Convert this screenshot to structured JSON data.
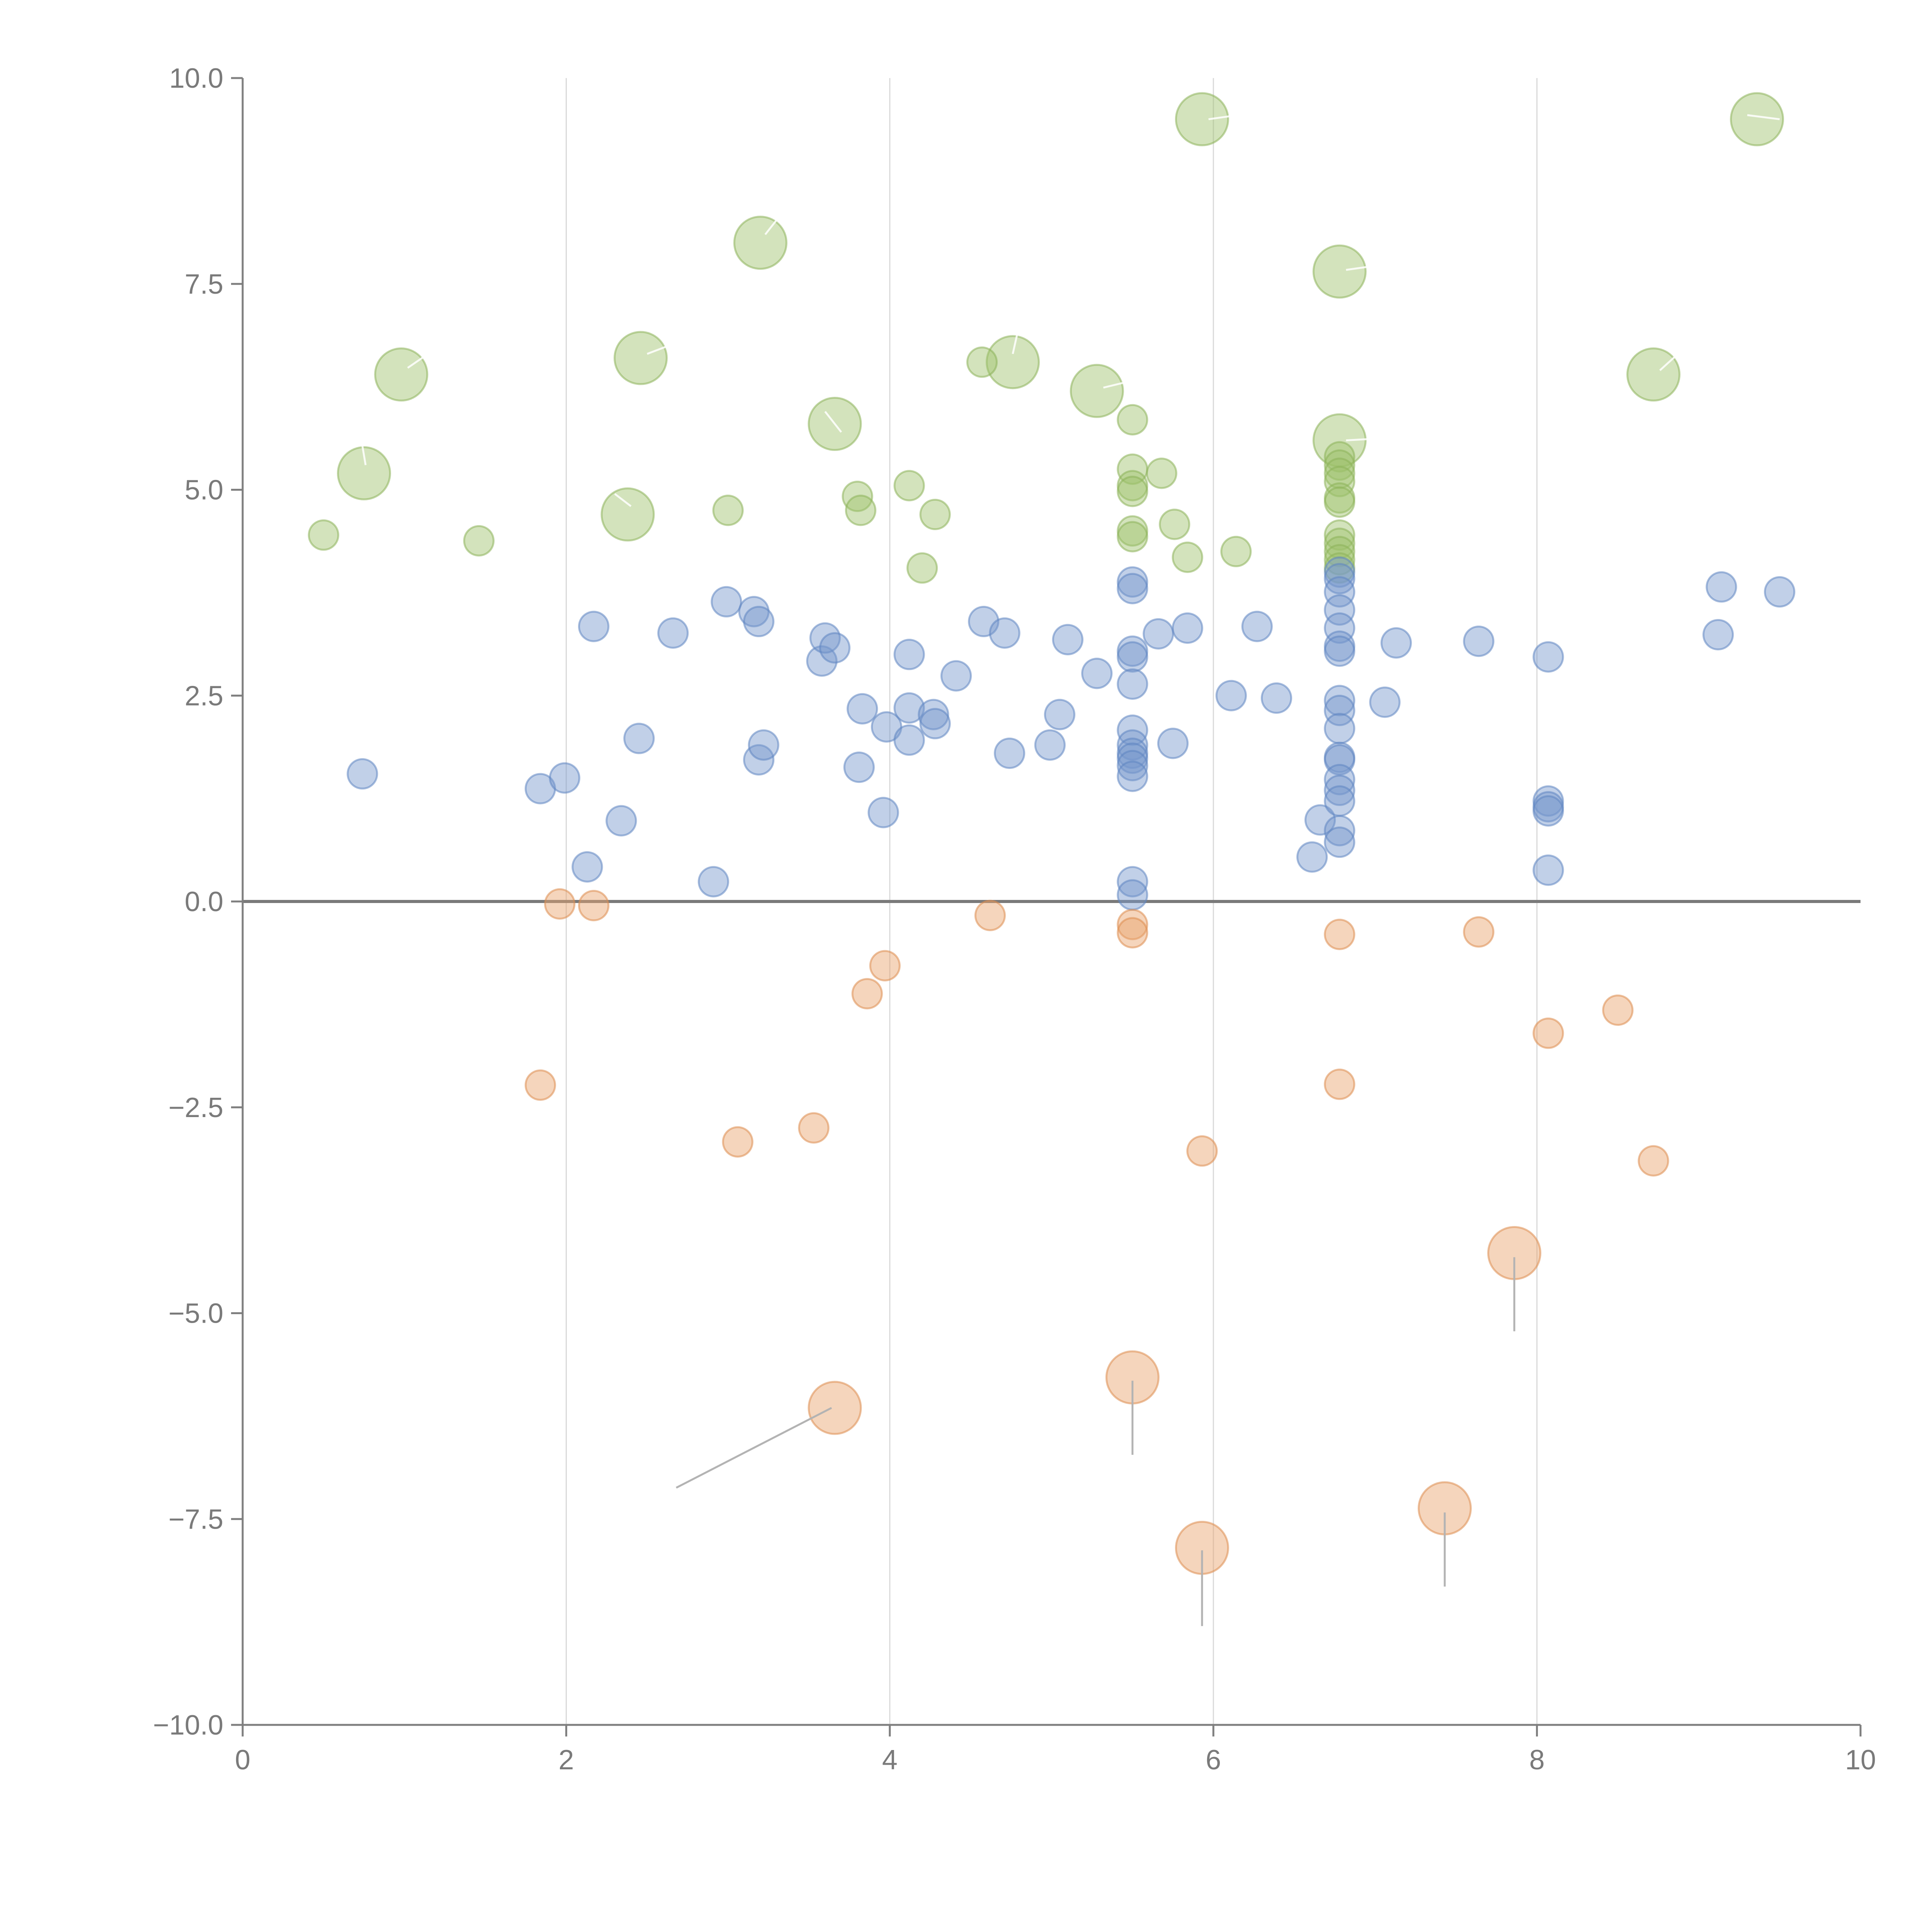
{
  "chart_data": {
    "type": "scatter",
    "title": "",
    "xlabel": "",
    "ylabel": "",
    "xlim": [
      0,
      10
    ],
    "ylim": [
      -10,
      10
    ],
    "x_ticks": [
      0,
      2,
      4,
      6,
      8,
      10
    ],
    "x_tick_labels": [
      "0",
      "2",
      "4",
      "6",
      "8",
      "10"
    ],
    "y_ticks": [
      10,
      7.5,
      5,
      2.5,
      0,
      -2.5,
      -5,
      -7.5,
      -10
    ],
    "y_tick_labels": [
      "10.0",
      "7.5",
      "5.0",
      "2.5",
      "0.0",
      "−2.5",
      "−5.0",
      "−7.5",
      "−10.0"
    ],
    "x_grid": [
      2,
      4,
      6,
      8
    ],
    "reference_line_y": 0,
    "colors": {
      "green": "#9dc16a",
      "green_stroke": "#8db35a",
      "blue": "#7597cc",
      "blue_stroke": "#5f85c1",
      "orange": "#e8a26b",
      "orange_stroke": "#dd8c4f",
      "axis": "#7f7f7f",
      "grid": "#d9d9d9"
    },
    "series": [
      {
        "name": "green-large",
        "color_key": "green",
        "radius": 0.62,
        "points": [
          [
            0.75,
            5.2
          ],
          [
            0.98,
            6.4
          ],
          [
            2.38,
            4.7
          ],
          [
            2.46,
            6.6
          ],
          [
            3.2,
            8.0
          ],
          [
            3.66,
            5.8
          ],
          [
            4.76,
            6.55
          ],
          [
            5.28,
            6.2
          ],
          [
            5.93,
            9.5
          ],
          [
            6.78,
            7.65
          ],
          [
            6.78,
            5.6
          ],
          [
            8.72,
            6.4
          ],
          [
            9.36,
            9.5
          ]
        ]
      },
      {
        "name": "green-small",
        "color_key": "green",
        "radius": 0.35,
        "points": [
          [
            0.5,
            4.45
          ],
          [
            1.46,
            4.38
          ],
          [
            3.0,
            4.75
          ],
          [
            3.8,
            4.92
          ],
          [
            3.82,
            4.75
          ],
          [
            4.12,
            5.05
          ],
          [
            4.2,
            4.05
          ],
          [
            4.28,
            4.7
          ],
          [
            4.57,
            6.55
          ],
          [
            5.5,
            5.85
          ],
          [
            5.5,
            5.25
          ],
          [
            5.5,
            5.05
          ],
          [
            5.5,
            4.98
          ],
          [
            5.5,
            4.5
          ],
          [
            5.5,
            4.43
          ],
          [
            5.68,
            5.2
          ],
          [
            5.76,
            4.58
          ],
          [
            5.84,
            4.18
          ],
          [
            6.14,
            4.25
          ],
          [
            6.78,
            5.4
          ],
          [
            6.78,
            5.3
          ],
          [
            6.78,
            5.2
          ],
          [
            6.78,
            5.1
          ],
          [
            6.78,
            4.9
          ],
          [
            6.78,
            4.85
          ],
          [
            6.78,
            4.45
          ],
          [
            6.78,
            4.35
          ],
          [
            6.78,
            4.25
          ],
          [
            6.78,
            4.15
          ],
          [
            6.78,
            4.05
          ]
        ]
      },
      {
        "name": "blue",
        "color_key": "blue",
        "radius": 0.35,
        "points": [
          [
            0.74,
            1.55
          ],
          [
            1.84,
            1.37
          ],
          [
            1.99,
            1.5
          ],
          [
            2.13,
            0.42
          ],
          [
            2.17,
            3.34
          ],
          [
            2.34,
            0.98
          ],
          [
            2.45,
            1.98
          ],
          [
            2.66,
            3.26
          ],
          [
            2.91,
            0.24
          ],
          [
            2.99,
            3.64
          ],
          [
            3.16,
            3.52
          ],
          [
            3.19,
            3.4
          ],
          [
            3.19,
            1.72
          ],
          [
            3.22,
            1.9
          ],
          [
            3.58,
            2.92
          ],
          [
            3.6,
            3.2
          ],
          [
            3.66,
            3.08
          ],
          [
            3.81,
            1.63
          ],
          [
            3.83,
            2.34
          ],
          [
            3.96,
            1.08
          ],
          [
            3.98,
            2.12
          ],
          [
            4.12,
            3.0
          ],
          [
            4.12,
            2.35
          ],
          [
            4.12,
            1.96
          ],
          [
            4.27,
            2.27
          ],
          [
            4.28,
            2.16
          ],
          [
            4.41,
            2.74
          ],
          [
            4.58,
            3.4
          ],
          [
            4.71,
            3.26
          ],
          [
            4.74,
            1.8
          ],
          [
            4.99,
            1.9
          ],
          [
            5.05,
            2.27
          ],
          [
            5.1,
            3.18
          ],
          [
            5.28,
            2.77
          ],
          [
            5.5,
            3.88
          ],
          [
            5.5,
            3.8
          ],
          [
            5.5,
            3.04
          ],
          [
            5.5,
            2.97
          ],
          [
            5.5,
            2.64
          ],
          [
            5.5,
            2.08
          ],
          [
            5.5,
            1.9
          ],
          [
            5.5,
            1.8
          ],
          [
            5.5,
            1.74
          ],
          [
            5.5,
            1.65
          ],
          [
            5.5,
            1.52
          ],
          [
            5.5,
            0.24
          ],
          [
            5.5,
            0.08
          ],
          [
            5.66,
            3.25
          ],
          [
            5.75,
            1.92
          ],
          [
            5.84,
            3.32
          ],
          [
            6.11,
            2.5
          ],
          [
            6.27,
            3.34
          ],
          [
            6.39,
            2.47
          ],
          [
            6.61,
            0.54
          ],
          [
            6.66,
            0.99
          ],
          [
            6.78,
            4.0
          ],
          [
            6.78,
            3.92
          ],
          [
            6.78,
            3.76
          ],
          [
            6.78,
            3.54
          ],
          [
            6.78,
            3.32
          ],
          [
            6.78,
            3.1
          ],
          [
            6.78,
            3.04
          ],
          [
            6.78,
            2.44
          ],
          [
            6.78,
            2.32
          ],
          [
            6.78,
            2.1
          ],
          [
            6.78,
            1.75
          ],
          [
            6.78,
            1.72
          ],
          [
            6.78,
            1.48
          ],
          [
            6.78,
            1.35
          ],
          [
            6.78,
            1.22
          ],
          [
            6.78,
            0.86
          ],
          [
            6.78,
            0.72
          ],
          [
            7.06,
            2.42
          ],
          [
            7.13,
            3.14
          ],
          [
            7.64,
            3.16
          ],
          [
            8.07,
            2.97
          ],
          [
            8.07,
            1.22
          ],
          [
            8.07,
            1.15
          ],
          [
            8.07,
            1.1
          ],
          [
            8.07,
            0.38
          ],
          [
            9.12,
            3.24
          ],
          [
            9.14,
            3.82
          ],
          [
            9.5,
            3.76
          ]
        ]
      },
      {
        "name": "orange-small",
        "color_key": "orange",
        "radius": 0.35,
        "points": [
          [
            1.84,
            -2.23
          ],
          [
            1.96,
            -0.03
          ],
          [
            2.17,
            -0.05
          ],
          [
            3.06,
            -2.92
          ],
          [
            3.53,
            -2.75
          ],
          [
            3.86,
            -1.12
          ],
          [
            3.97,
            -0.78
          ],
          [
            4.62,
            -0.17
          ],
          [
            5.5,
            -0.28
          ],
          [
            5.5,
            -0.38
          ],
          [
            5.93,
            -3.03
          ],
          [
            6.78,
            -0.4
          ],
          [
            6.78,
            -2.22
          ],
          [
            7.64,
            -0.37
          ],
          [
            8.07,
            -1.6
          ],
          [
            8.5,
            -1.32
          ],
          [
            8.72,
            -3.15
          ]
        ]
      },
      {
        "name": "orange-large",
        "color_key": "orange",
        "radius": 0.62,
        "points": [
          [
            3.66,
            -6.15
          ],
          [
            5.5,
            -5.78
          ],
          [
            5.93,
            -7.85
          ],
          [
            7.43,
            -7.37
          ],
          [
            7.86,
            -4.27
          ]
        ]
      }
    ],
    "leader_lines": [
      {
        "from": [
          3.64,
          -6.15
        ],
        "to": [
          2.68,
          -7.12
        ],
        "style": "gray"
      },
      {
        "from": [
          5.5,
          -5.82
        ],
        "to": [
          5.5,
          -6.72
        ],
        "style": "gray"
      },
      {
        "from": [
          5.93,
          -7.88
        ],
        "to": [
          5.93,
          -8.8
        ],
        "style": "gray"
      },
      {
        "from": [
          7.43,
          -7.42
        ],
        "to": [
          7.43,
          -8.32
        ],
        "style": "gray"
      },
      {
        "from": [
          7.86,
          -4.32
        ],
        "to": [
          7.86,
          -5.22
        ],
        "style": "gray"
      },
      {
        "from": [
          0.76,
          5.3
        ],
        "to": [
          0.73,
          5.65
        ],
        "style": "light"
      },
      {
        "from": [
          1.02,
          6.48
        ],
        "to": [
          1.22,
          6.75
        ],
        "style": "light"
      },
      {
        "from": [
          2.5,
          6.65
        ],
        "to": [
          2.7,
          6.8
        ],
        "style": "light"
      },
      {
        "from": [
          2.4,
          4.8
        ],
        "to": [
          2.3,
          4.95
        ],
        "style": "light"
      },
      {
        "from": [
          3.23,
          8.1
        ],
        "to": [
          3.33,
          8.35
        ],
        "style": "light"
      },
      {
        "from": [
          3.7,
          5.7
        ],
        "to": [
          3.6,
          5.95
        ],
        "style": "light"
      },
      {
        "from": [
          4.76,
          6.65
        ],
        "to": [
          4.8,
          7.0
        ],
        "style": "light"
      },
      {
        "from": [
          5.32,
          6.24
        ],
        "to": [
          5.55,
          6.35
        ],
        "style": "light"
      },
      {
        "from": [
          5.97,
          9.5
        ],
        "to": [
          6.15,
          9.55
        ],
        "style": "light"
      },
      {
        "from": [
          6.82,
          7.67
        ],
        "to": [
          7.0,
          7.72
        ],
        "style": "light"
      },
      {
        "from": [
          6.82,
          5.6
        ],
        "to": [
          7.0,
          5.62
        ],
        "style": "light"
      },
      {
        "from": [
          8.76,
          6.45
        ],
        "to": [
          8.9,
          6.7
        ],
        "style": "light"
      },
      {
        "from": [
          9.3,
          9.55
        ],
        "to": [
          9.5,
          9.5
        ],
        "style": "light"
      }
    ]
  }
}
